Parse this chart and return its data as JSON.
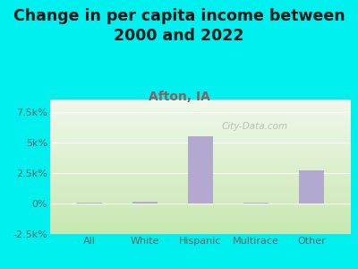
{
  "title": "Change in per capita income between\n2000 and 2022",
  "subtitle": "Afton, IA",
  "categories": [
    "All",
    "White",
    "Hispanic",
    "Multirace",
    "Other"
  ],
  "values": [
    100,
    150,
    5500,
    50,
    2700
  ],
  "bar_color": "#b3a8d0",
  "background_outer": "#00efef",
  "background_inner_top": "#f0f8ec",
  "background_inner_bottom": "#c8e8b0",
  "title_fontsize": 12.5,
  "title_color": "#1a1a1a",
  "subtitle_fontsize": 10,
  "subtitle_color": "#8b6060",
  "tick_color": "#666666",
  "ytick_fontsize": 8,
  "xtick_fontsize": 8,
  "ylim": [
    -2500,
    8500
  ],
  "yticks": [
    -2500,
    0,
    2500,
    5000,
    7500
  ],
  "ytick_labels": [
    "-2.5k%",
    "0%",
    "2.5k%",
    "5k%",
    "7.5k%"
  ],
  "watermark": "City-Data.com",
  "watermark_color": "#aaaaaa",
  "bar_width": 0.45
}
